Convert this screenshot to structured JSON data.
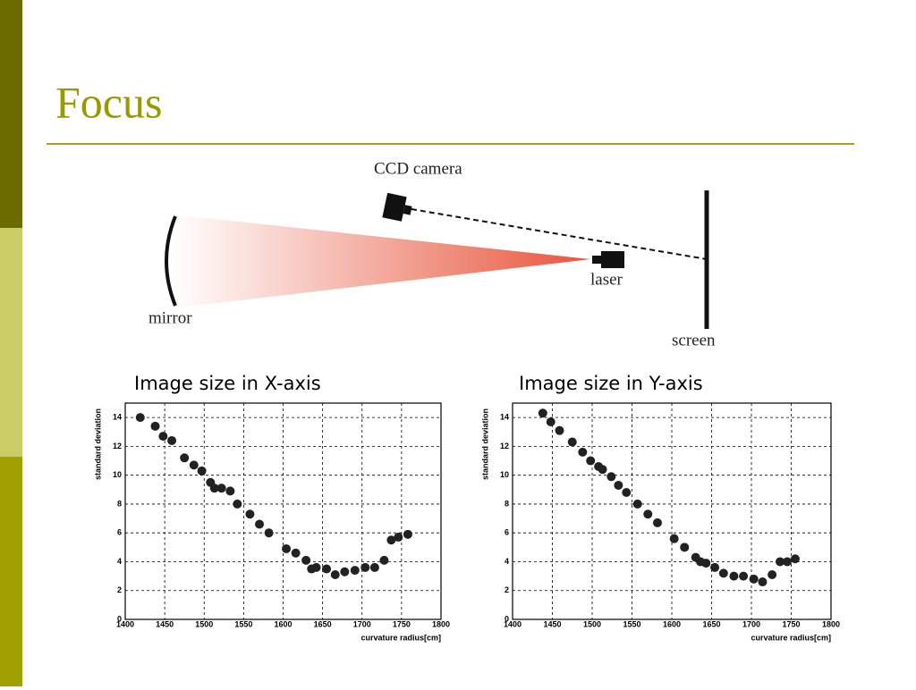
{
  "title": "Focus",
  "diagram": {
    "camera": "CCD camera",
    "laser": "laser",
    "mirror": "mirror",
    "screen": "screen"
  },
  "chart_data": [
    {
      "type": "scatter",
      "title": "Image size in X-axis",
      "x_label": "curvature radius[cm]",
      "y_label": "standard deviation",
      "x": [
        1419,
        1438,
        1448,
        1459,
        1475,
        1487,
        1497,
        1508,
        1513,
        1522,
        1533,
        1542,
        1558,
        1570,
        1582,
        1604,
        1616,
        1629,
        1636,
        1642,
        1655,
        1666,
        1678,
        1691,
        1704,
        1716,
        1728,
        1737,
        1746,
        1758
      ],
      "values": [
        14.0,
        13.4,
        12.7,
        12.4,
        11.2,
        10.7,
        10.3,
        9.5,
        9.1,
        9.1,
        8.9,
        8.0,
        7.3,
        6.6,
        6.0,
        4.9,
        4.6,
        4.1,
        3.5,
        3.6,
        3.5,
        3.1,
        3.3,
        3.4,
        3.6,
        3.6,
        4.1,
        5.5,
        5.7,
        5.9
      ],
      "color": "#222222",
      "xlim": [
        1400,
        1800
      ],
      "xticks": [
        1400,
        1450,
        1500,
        1550,
        1600,
        1650,
        1700,
        1750,
        1800
      ],
      "ylim": [
        0,
        15
      ],
      "yticks": [
        0,
        2,
        4,
        6,
        8,
        10,
        12,
        14
      ],
      "grid": true
    },
    {
      "type": "scatter",
      "title": "Image size in Y-axis",
      "x_label": "curvature radius[cm]",
      "y_label": "standard deviation",
      "x": [
        1438,
        1448,
        1459,
        1475,
        1488,
        1498,
        1508,
        1513,
        1524,
        1533,
        1543,
        1557,
        1570,
        1582,
        1603,
        1616,
        1630,
        1636,
        1643,
        1654,
        1665,
        1678,
        1690,
        1703,
        1714,
        1726,
        1736,
        1745,
        1755
      ],
      "values": [
        14.3,
        13.7,
        13.1,
        12.3,
        11.6,
        11.0,
        10.6,
        10.4,
        9.9,
        9.3,
        8.8,
        8.0,
        7.3,
        6.7,
        5.6,
        5.0,
        4.3,
        4.0,
        3.9,
        3.6,
        3.2,
        3.0,
        3.0,
        2.8,
        2.6,
        3.1,
        4.0,
        4.0,
        4.2
      ],
      "color": "#222222",
      "xlim": [
        1400,
        1800
      ],
      "xticks": [
        1400,
        1450,
        1500,
        1550,
        1600,
        1650,
        1700,
        1750,
        1800
      ],
      "ylim": [
        0,
        15
      ],
      "yticks": [
        0,
        2,
        4,
        6,
        8,
        10,
        12,
        14
      ],
      "grid": true
    }
  ]
}
